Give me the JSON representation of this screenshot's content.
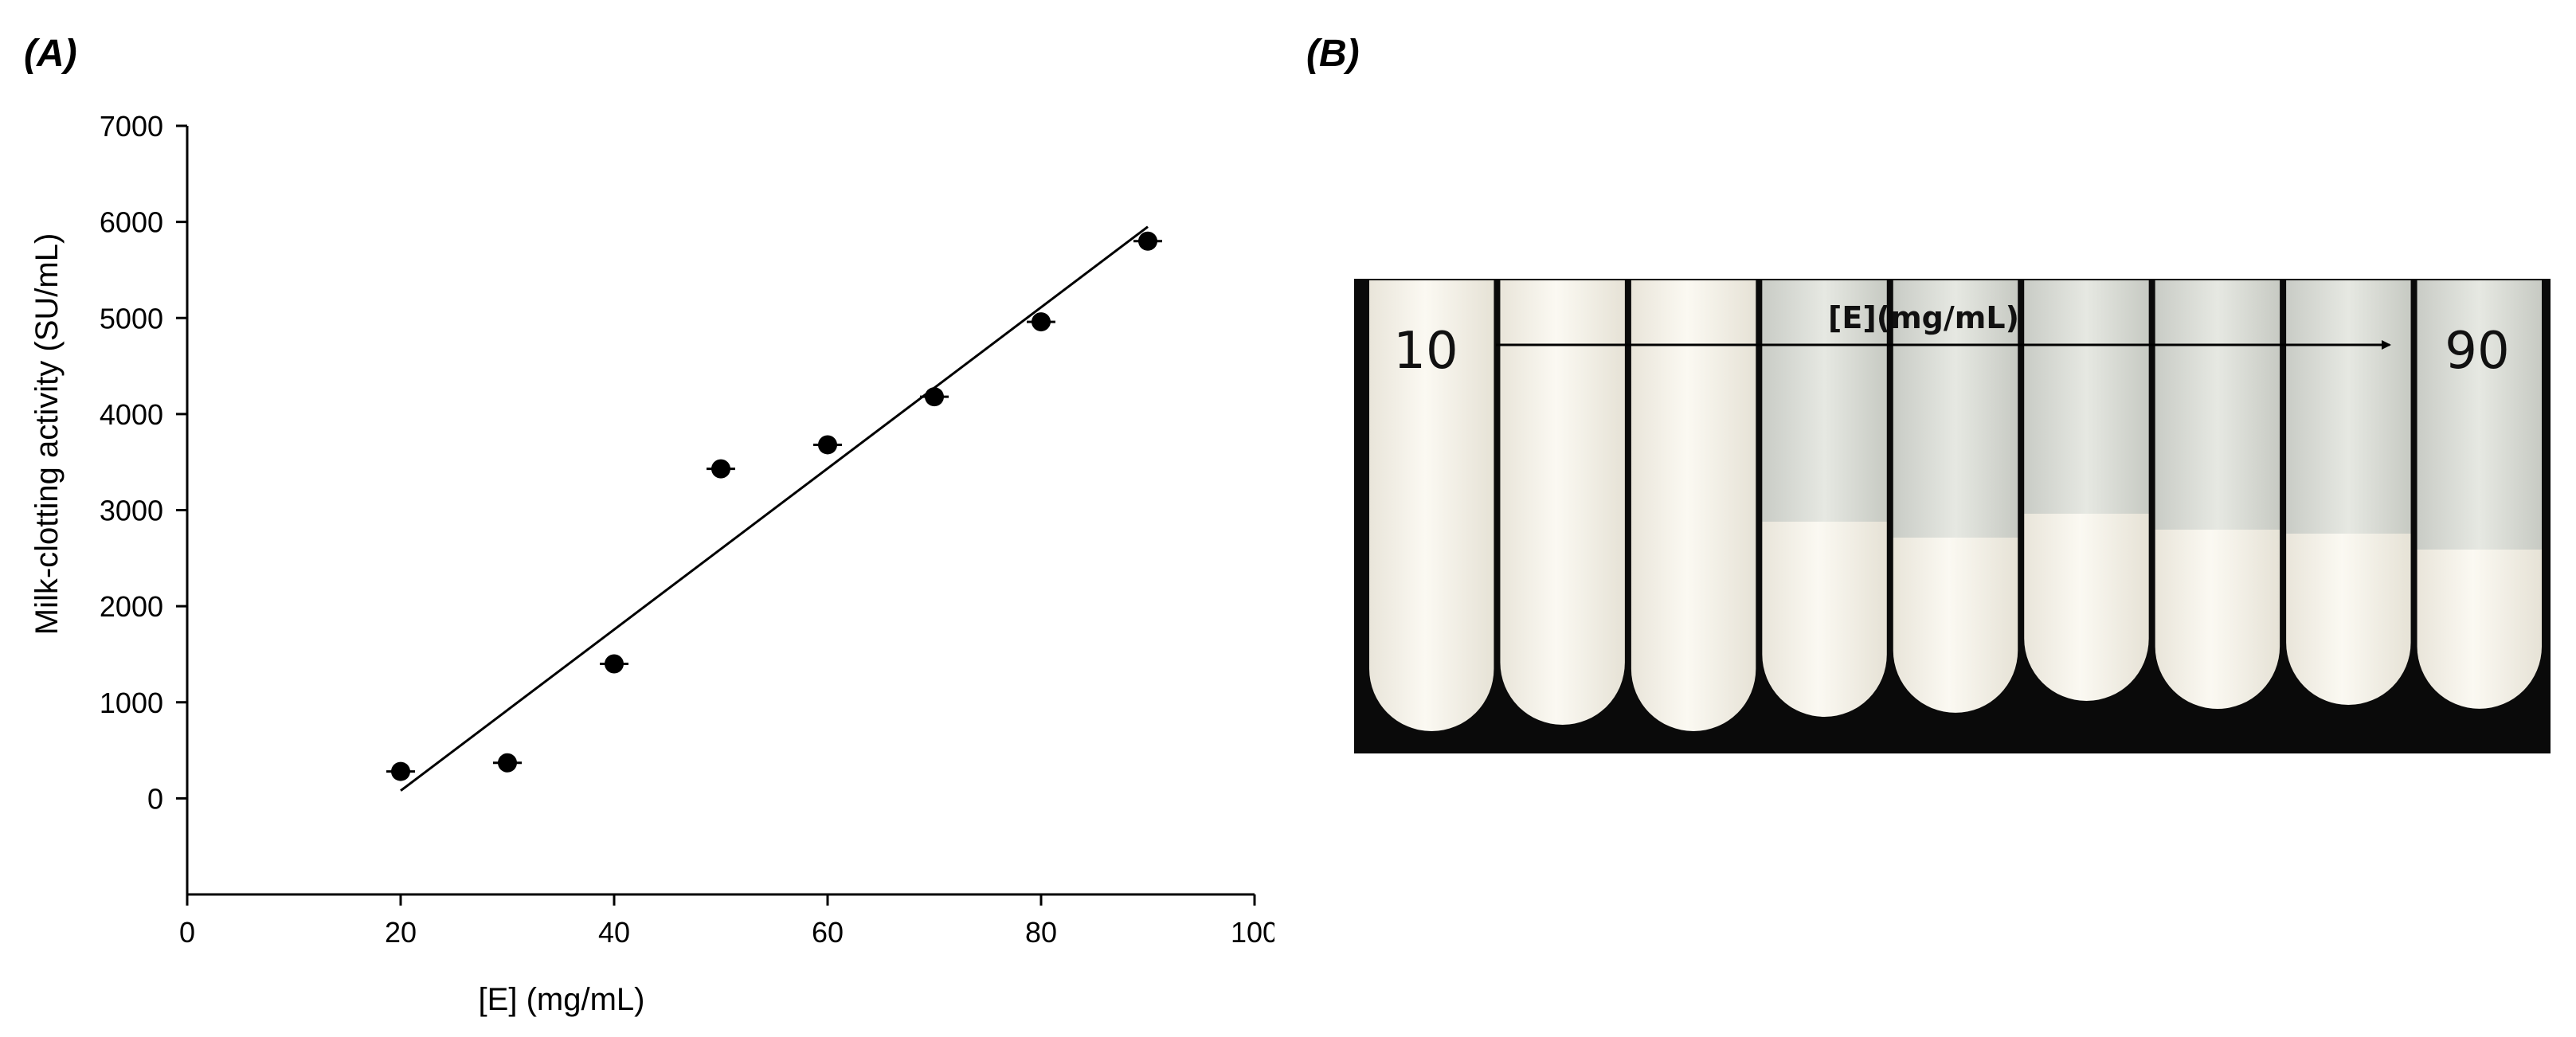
{
  "panels": {
    "a_label": "(A)",
    "b_label": "(B)"
  },
  "chart_data": {
    "type": "scatter",
    "title": "",
    "xlabel": "[E] (mg/mL)",
    "ylabel": "Milk-clotting activity (SU/mL)",
    "xlim": [
      0,
      100
    ],
    "ylim": [
      -1000,
      7000
    ],
    "xticks": [
      0,
      20,
      40,
      60,
      80,
      100
    ],
    "yticks": [
      0,
      1000,
      2000,
      3000,
      4000,
      5000,
      6000,
      7000
    ],
    "grid": false,
    "legend": "none",
    "series": [
      {
        "x": [
          20,
          30,
          40,
          50,
          60,
          70,
          80,
          90
        ],
        "y": [
          280,
          370,
          1400,
          3430,
          3680,
          4180,
          4960,
          5800
        ]
      }
    ],
    "trendline": {
      "x": [
        20,
        90
      ],
      "y": [
        80,
        5950
      ]
    },
    "colors": {
      "points": "#000000",
      "axes": "#000000"
    }
  },
  "photo": {
    "caption": "[E](mg/mL)",
    "start_value": "10",
    "end_value": "90",
    "tube_count": 9,
    "colors": {
      "background": "#0a0a0a",
      "milk": "#f4f1e6",
      "whey": "#d9dcd6"
    }
  }
}
